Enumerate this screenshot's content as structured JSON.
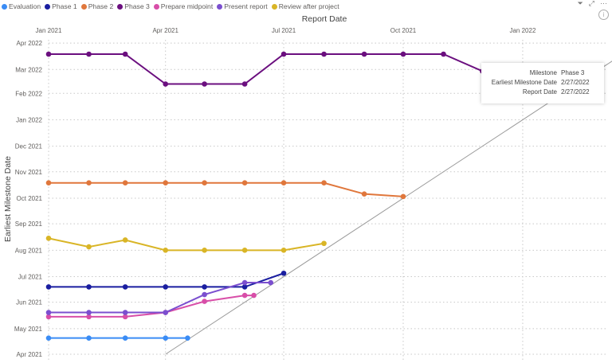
{
  "chart_data": {
    "type": "line",
    "title": "",
    "xlabel": "Report Date",
    "ylabel": "Earliest Milestone Date",
    "x_ticks": [
      "Jan 2021",
      "Apr 2021",
      "Jul 2021",
      "Oct 2021",
      "Jan 2022"
    ],
    "y_ticks": [
      "Apr 2021",
      "May 2021",
      "Jun 2021",
      "Jul 2021",
      "Aug 2021",
      "Sep 2021",
      "Oct 2021",
      "Nov 2021",
      "Dec 2021",
      "Jan 2022",
      "Feb 2022",
      "Mar 2022",
      "Apr 2022"
    ],
    "xlim": [
      "2021-01-01",
      "2022-03-05"
    ],
    "ylim": [
      "2021-04-01",
      "2022-04-01"
    ],
    "grid": true,
    "legend_position": "top-left",
    "reference_line": "y = x",
    "series": [
      {
        "name": "Evaluation",
        "color": "#3a8cf5",
        "points": [
          [
            "2021-01-01",
            "2021-04-20"
          ],
          [
            "2021-02-01",
            "2021-04-20"
          ],
          [
            "2021-03-01",
            "2021-04-20"
          ],
          [
            "2021-04-01",
            "2021-04-20"
          ],
          [
            "2021-04-18",
            "2021-04-20"
          ]
        ]
      },
      {
        "name": "Phase 1",
        "color": "#1a1ea0",
        "points": [
          [
            "2021-01-01",
            "2021-06-19"
          ],
          [
            "2021-02-01",
            "2021-06-19"
          ],
          [
            "2021-03-01",
            "2021-06-19"
          ],
          [
            "2021-04-01",
            "2021-06-19"
          ],
          [
            "2021-05-01",
            "2021-06-19"
          ],
          [
            "2021-06-01",
            "2021-06-19"
          ],
          [
            "2021-07-01",
            "2021-07-05"
          ]
        ]
      },
      {
        "name": "Phase 2",
        "color": "#e0773c",
        "points": [
          [
            "2021-01-01",
            "2021-10-19"
          ],
          [
            "2021-02-01",
            "2021-10-19"
          ],
          [
            "2021-03-01",
            "2021-10-19"
          ],
          [
            "2021-04-01",
            "2021-10-19"
          ],
          [
            "2021-05-01",
            "2021-10-19"
          ],
          [
            "2021-06-01",
            "2021-10-19"
          ],
          [
            "2021-07-01",
            "2021-10-19"
          ],
          [
            "2021-08-01",
            "2021-10-19"
          ],
          [
            "2021-09-01",
            "2021-10-06"
          ],
          [
            "2021-10-01",
            "2021-10-03"
          ]
        ]
      },
      {
        "name": "Phase 3",
        "color": "#6b0f7f",
        "points": [
          [
            "2021-01-01",
            "2022-03-19"
          ],
          [
            "2021-02-01",
            "2022-03-19"
          ],
          [
            "2021-03-01",
            "2022-03-19"
          ],
          [
            "2021-04-01",
            "2022-02-12"
          ],
          [
            "2021-05-01",
            "2022-02-12"
          ],
          [
            "2021-06-01",
            "2022-02-12"
          ],
          [
            "2021-07-01",
            "2022-03-19"
          ],
          [
            "2021-08-01",
            "2022-03-19"
          ],
          [
            "2021-09-01",
            "2022-03-19"
          ],
          [
            "2021-10-01",
            "2022-03-19"
          ],
          [
            "2021-11-01",
            "2022-03-19"
          ],
          [
            "2021-12-01",
            "2022-02-27"
          ],
          [
            "2022-02-27",
            "2022-02-27"
          ]
        ]
      },
      {
        "name": "Prepare midpoint",
        "color": "#d84ea8",
        "points": [
          [
            "2021-01-01",
            "2021-05-15"
          ],
          [
            "2021-02-01",
            "2021-05-15"
          ],
          [
            "2021-03-01",
            "2021-05-15"
          ],
          [
            "2021-04-01",
            "2021-05-20"
          ],
          [
            "2021-05-01",
            "2021-06-02"
          ],
          [
            "2021-06-01",
            "2021-06-09"
          ],
          [
            "2021-06-08",
            "2021-06-09"
          ]
        ]
      },
      {
        "name": "Present report",
        "color": "#7b4fcf",
        "points": [
          [
            "2021-01-01",
            "2021-05-20"
          ],
          [
            "2021-02-01",
            "2021-05-20"
          ],
          [
            "2021-03-01",
            "2021-05-20"
          ],
          [
            "2021-04-01",
            "2021-05-20"
          ],
          [
            "2021-05-01",
            "2021-06-10"
          ],
          [
            "2021-06-01",
            "2021-06-24"
          ],
          [
            "2021-06-21",
            "2021-06-24"
          ]
        ]
      },
      {
        "name": "Review after project",
        "color": "#d9b526",
        "points": [
          [
            "2021-01-01",
            "2021-08-15"
          ],
          [
            "2021-02-01",
            "2021-08-05"
          ],
          [
            "2021-03-01",
            "2021-08-13"
          ],
          [
            "2021-04-01",
            "2021-08-01"
          ],
          [
            "2021-05-01",
            "2021-08-01"
          ],
          [
            "2021-06-01",
            "2021-08-01"
          ],
          [
            "2021-07-01",
            "2021-08-01"
          ],
          [
            "2021-08-01",
            "2021-08-09"
          ]
        ]
      }
    ]
  },
  "tooltip": {
    "rows": [
      {
        "label": "Milestone",
        "value": "Phase 3"
      },
      {
        "label": "Earliest Milestone Date",
        "value": "2/27/2022"
      },
      {
        "label": "Report Date",
        "value": "2/27/2022"
      }
    ]
  },
  "toolbar": {
    "filter_icon": "funnel-icon",
    "focus_icon": "expand-icon",
    "more_label": "···",
    "info_label": "i"
  }
}
